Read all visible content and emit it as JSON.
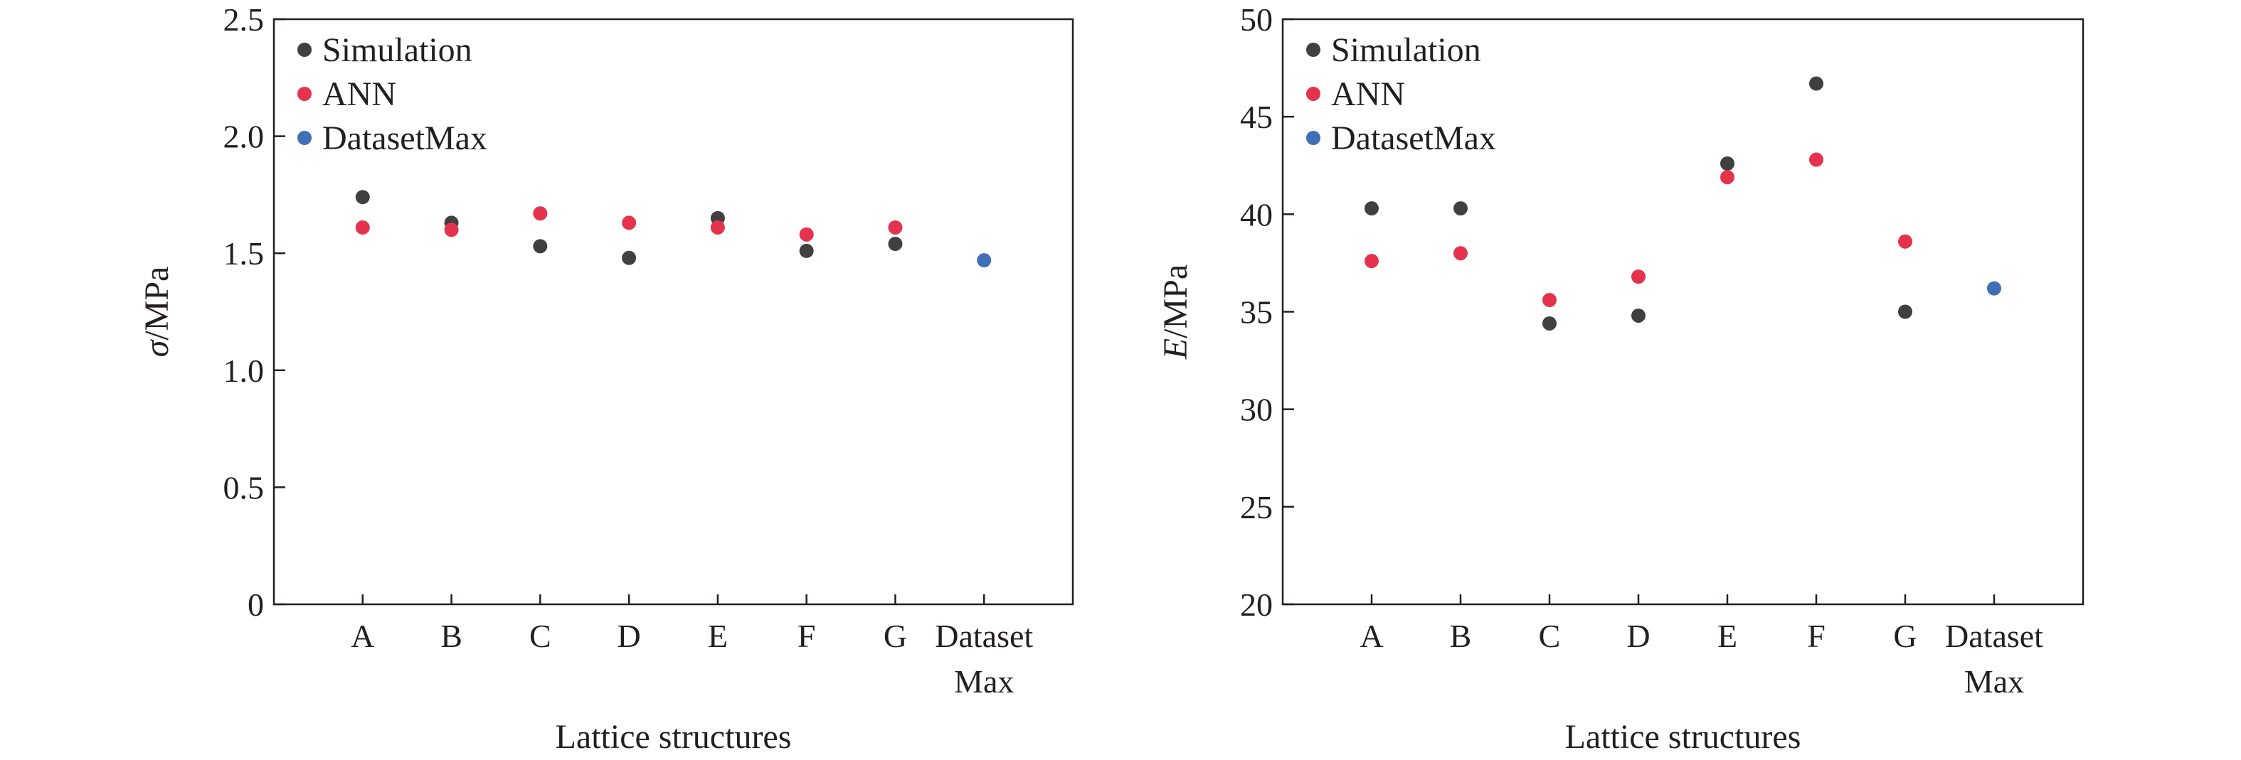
{
  "chart_data": [
    {
      "type": "scatter",
      "categories": [
        "A",
        "B",
        "C",
        "D",
        "E",
        "F",
        "G",
        "Dataset\nMax"
      ],
      "series": [
        {
          "name": "Simulation",
          "color": "#404040",
          "values": [
            1.74,
            1.63,
            1.53,
            1.48,
            1.65,
            1.51,
            1.54,
            null
          ]
        },
        {
          "name": "ANN",
          "color": "#e6334d",
          "values": [
            1.61,
            1.6,
            1.67,
            1.63,
            1.61,
            1.58,
            1.61,
            null
          ]
        },
        {
          "name": "DatasetMax",
          "color": "#3f6fb6",
          "values": [
            null,
            null,
            null,
            null,
            null,
            null,
            null,
            1.47
          ]
        }
      ],
      "ylim": [
        0,
        2.5
      ],
      "yticks": [
        "0",
        "0.5",
        "1.0",
        "1.5",
        "2.0",
        "2.5"
      ],
      "ylabel_symbol": "σ",
      "ylabel_unit": "/MPa",
      "xlabel": "Lattice structures",
      "legend": "top-left",
      "grid": false
    },
    {
      "type": "scatter",
      "categories": [
        "A",
        "B",
        "C",
        "D",
        "E",
        "F",
        "G",
        "Dataset\nMax"
      ],
      "series": [
        {
          "name": "Simulation",
          "color": "#404040",
          "values": [
            40.3,
            40.3,
            34.4,
            34.8,
            42.6,
            46.7,
            35.0,
            null
          ]
        },
        {
          "name": "ANN",
          "color": "#e6334d",
          "values": [
            37.6,
            38.0,
            35.6,
            36.8,
            41.9,
            42.8,
            38.6,
            null
          ]
        },
        {
          "name": "DatasetMax",
          "color": "#3f6fb6",
          "values": [
            null,
            null,
            null,
            null,
            null,
            null,
            null,
            36.2
          ]
        }
      ],
      "ylim": [
        20,
        50
      ],
      "yticks": [
        "20",
        "25",
        "30",
        "35",
        "40",
        "45",
        "50"
      ],
      "ylabel_symbol": "E",
      "ylabel_unit": "/MPa",
      "xlabel": "Lattice structures",
      "legend": "top-left",
      "grid": false
    }
  ]
}
